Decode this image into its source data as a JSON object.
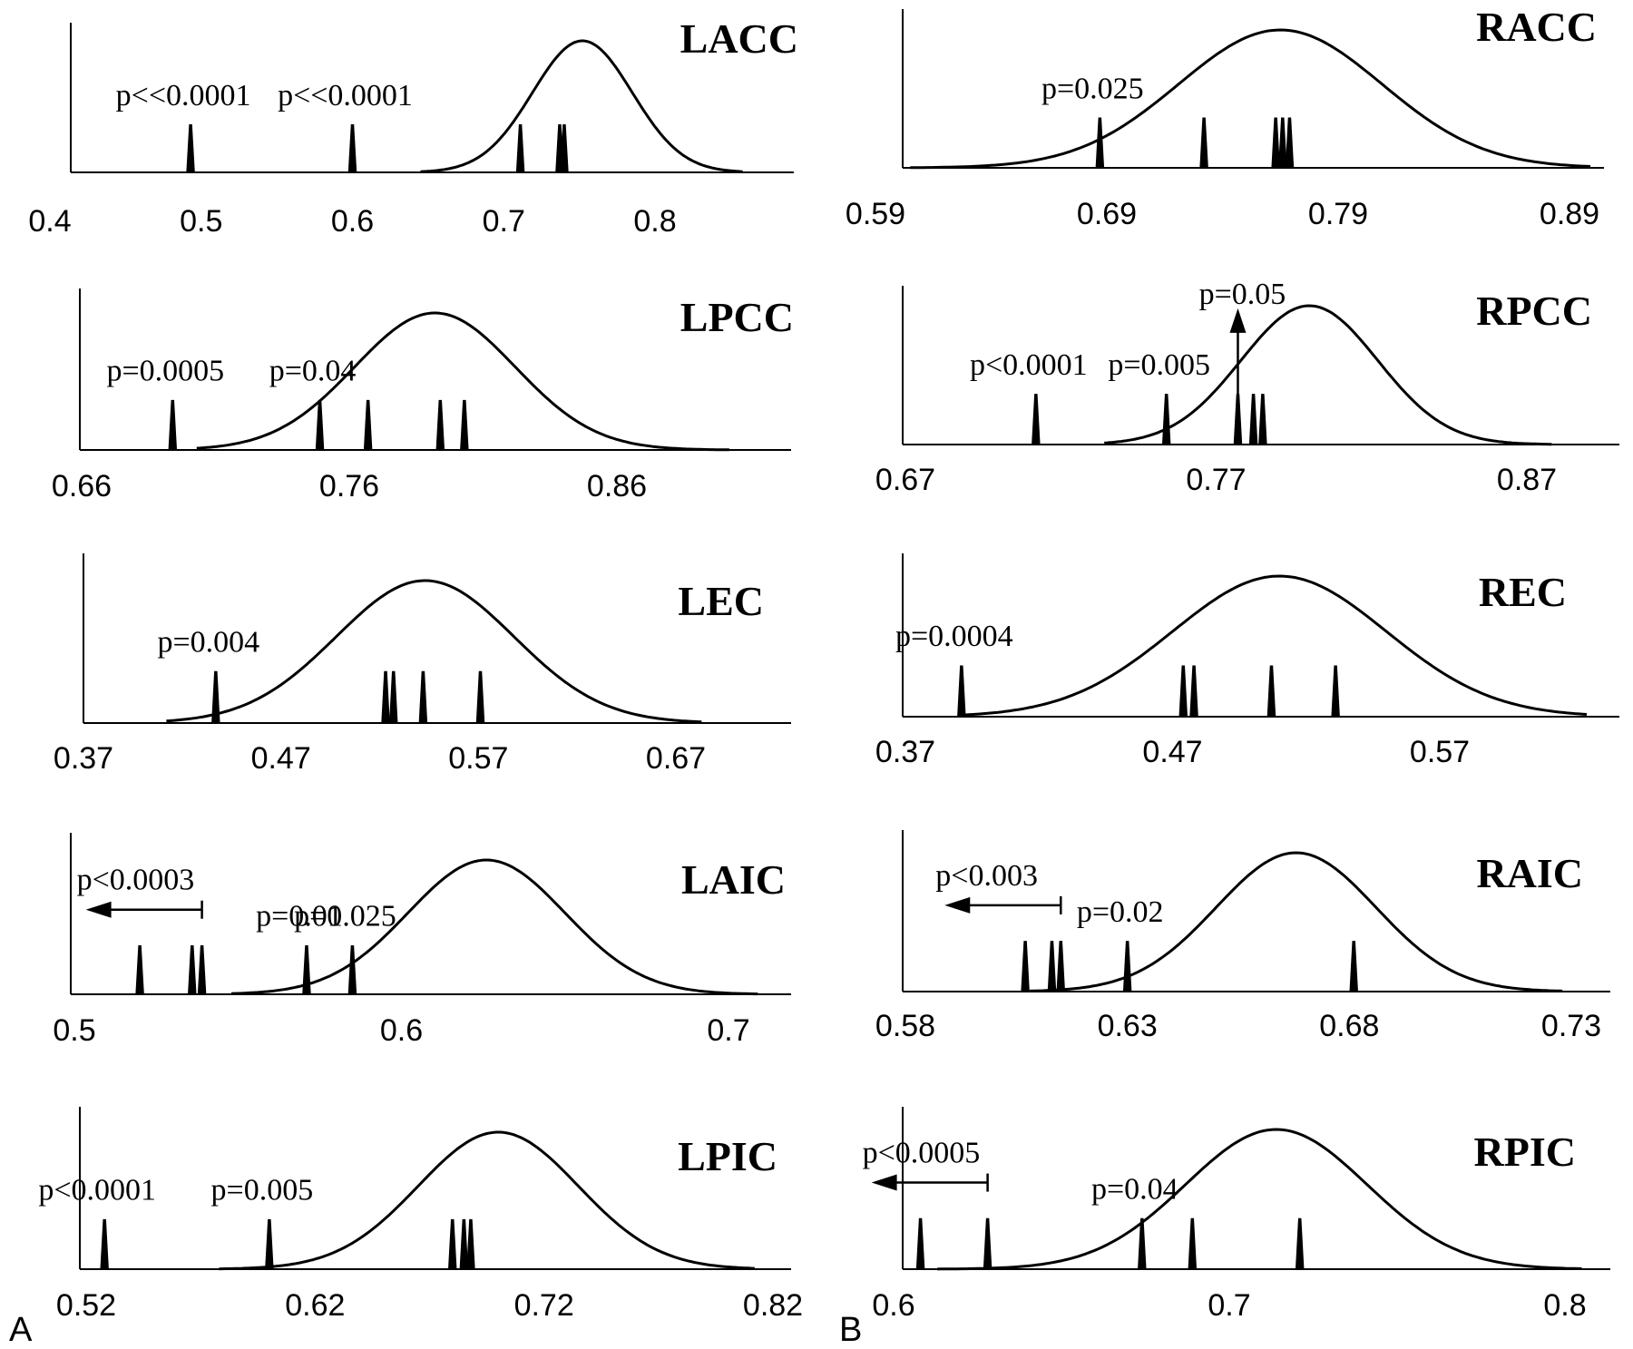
{
  "figure": {
    "panel_labels": [
      "A",
      "B"
    ]
  },
  "chart_data": [
    {
      "type": "line",
      "title": "LACC",
      "column": "A",
      "xlim": [
        0.4,
        0.88
      ],
      "ticks": [
        0.4,
        0.5,
        0.6,
        0.7,
        0.8
      ],
      "tick_labels": [
        "0.4",
        "0.5",
        "0.6",
        "0.7",
        "0.8"
      ],
      "curve": {
        "mean": 0.752,
        "sd": 0.033,
        "start": 0.645,
        "end": 0.858
      },
      "spikes": [
        0.493,
        0.6,
        0.711,
        0.737,
        0.74
      ],
      "annotations": [
        {
          "text": "p<<0.0001",
          "x": 0.493
        },
        {
          "text": "p<<0.0001",
          "x": 0.6
        }
      ]
    },
    {
      "type": "line",
      "title": "RACC",
      "column": "B",
      "xlim": [
        0.59,
        0.91
      ],
      "ticks": [
        0.59,
        0.69,
        0.79,
        0.89
      ],
      "tick_labels": [
        "0.59",
        "0.69",
        "0.79",
        "0.89"
      ],
      "curve": {
        "mean": 0.765,
        "sd": 0.044,
        "start": 0.605,
        "end": 0.899
      },
      "spikes": [
        0.687,
        0.732,
        0.763,
        0.766,
        0.769
      ],
      "annotations": [
        {
          "text": "p=0.025",
          "x": 0.687
        }
      ]
    },
    {
      "type": "line",
      "title": "LPCC",
      "column": "A",
      "xlim": [
        0.66,
        0.93
      ],
      "ticks": [
        0.66,
        0.76,
        0.86
      ],
      "tick_labels": [
        "0.66",
        "0.76",
        "0.86"
      ],
      "curve": {
        "mean": 0.792,
        "sd": 0.03,
        "start": 0.703,
        "end": 0.902
      },
      "spikes": [
        0.694,
        0.749,
        0.767,
        0.794,
        0.803
      ],
      "annotations": [
        {
          "text": "p=0.0005",
          "x": 0.694
        },
        {
          "text": "p=0.04",
          "x": 0.749
        }
      ]
    },
    {
      "type": "line",
      "title": "RPCC",
      "column": "B",
      "xlim": [
        0.67,
        0.89
      ],
      "ticks": [
        0.67,
        0.77,
        0.87
      ],
      "tick_labels": [
        "0.67",
        "0.77",
        "0.87"
      ],
      "curve": {
        "mean": 0.8,
        "sd": 0.022,
        "start": 0.734,
        "end": 0.878
      },
      "spikes": [
        0.712,
        0.754,
        0.777,
        0.782,
        0.785
      ],
      "annotations": [
        {
          "text": "p<0.0001",
          "x": 0.712
        },
        {
          "text": "p=0.005",
          "x": 0.754
        },
        {
          "text": "p=0.05",
          "x": 0.777,
          "arrow": "up"
        }
      ]
    },
    {
      "type": "line",
      "title": "LEC",
      "column": "A",
      "xlim": [
        0.37,
        0.73
      ],
      "ticks": [
        0.37,
        0.47,
        0.57,
        0.67
      ],
      "tick_labels": [
        "0.37",
        "0.47",
        "0.57",
        "0.67"
      ],
      "curve": {
        "mean": 0.543,
        "sd": 0.045,
        "start": 0.412,
        "end": 0.683
      },
      "spikes": [
        0.437,
        0.523,
        0.527,
        0.542,
        0.571
      ],
      "annotations": [
        {
          "text": "p=0.004",
          "x": 0.437
        }
      ]
    },
    {
      "type": "line",
      "title": "REC",
      "column": "B",
      "xlim": [
        0.37,
        0.63
      ],
      "ticks": [
        0.37,
        0.47,
        0.57
      ],
      "tick_labels": [
        "0.37",
        "0.47",
        "0.57"
      ],
      "curve": {
        "mean": 0.51,
        "sd": 0.04,
        "start": 0.39,
        "end": 0.625
      },
      "spikes": [
        0.391,
        0.474,
        0.478,
        0.507,
        0.531
      ],
      "annotations": [
        {
          "text": "p=0.0004",
          "x": 0.391
        }
      ]
    },
    {
      "type": "line",
      "title": "LAIC",
      "column": "A",
      "xlim": [
        0.5,
        0.712
      ],
      "ticks": [
        0.5,
        0.6,
        0.7
      ],
      "tick_labels": [
        "0.5",
        "0.6",
        "0.7"
      ],
      "curve": {
        "mean": 0.626,
        "sd": 0.024,
        "start": 0.548,
        "end": 0.709
      },
      "spikes": [
        0.52,
        0.536,
        0.539,
        0.571,
        0.585
      ],
      "annotations": [
        {
          "text": "p<0.0003",
          "x": 0.539,
          "arrow": "left"
        },
        {
          "text": "p=0.01",
          "x": 0.571
        },
        {
          "text": "p=0.025",
          "x": 0.585
        }
      ]
    },
    {
      "type": "line",
      "title": "RAIC",
      "column": "B",
      "xlim": [
        0.58,
        0.735
      ],
      "ticks": [
        0.58,
        0.63,
        0.68,
        0.73
      ],
      "tick_labels": [
        "0.58",
        "0.63",
        "0.68",
        "0.73"
      ],
      "curve": {
        "mean": 0.668,
        "sd": 0.018,
        "start": 0.608,
        "end": 0.728
      },
      "spikes": [
        0.607,
        0.613,
        0.615,
        0.63,
        0.681
      ],
      "annotations": [
        {
          "text": "p<0.003",
          "x": 0.615,
          "arrow": "left"
        },
        {
          "text": "p=0.02",
          "x": 0.63
        }
      ]
    },
    {
      "type": "line",
      "title": "LPIC",
      "column": "A",
      "xlim": [
        0.52,
        0.82
      ],
      "ticks": [
        0.52,
        0.62,
        0.72,
        0.82
      ],
      "tick_labels": [
        "0.52",
        "0.62",
        "0.72",
        "0.82"
      ],
      "curve": {
        "mean": 0.7,
        "sd": 0.035,
        "start": 0.578,
        "end": 0.812
      },
      "spikes": [
        0.528,
        0.6,
        0.68,
        0.685,
        0.688
      ],
      "annotations": [
        {
          "text": "p<0.0001",
          "x": 0.528
        },
        {
          "text": "p=0.005",
          "x": 0.6
        }
      ]
    },
    {
      "type": "line",
      "title": "RPIC",
      "column": "B",
      "xlim": [
        0.6,
        0.81
      ],
      "ticks": [
        0.6,
        0.7,
        0.8
      ],
      "tick_labels": [
        "0.6",
        "0.7",
        "0.8"
      ],
      "curve": {
        "mean": 0.714,
        "sd": 0.027,
        "start": 0.613,
        "end": 0.805
      },
      "spikes": [
        0.608,
        0.628,
        0.674,
        0.689,
        0.721
      ],
      "annotations": [
        {
          "text": "p<0.0005",
          "x": 0.628,
          "arrow": "left"
        },
        {
          "text": "p=0.04",
          "x": 0.674
        }
      ]
    }
  ]
}
